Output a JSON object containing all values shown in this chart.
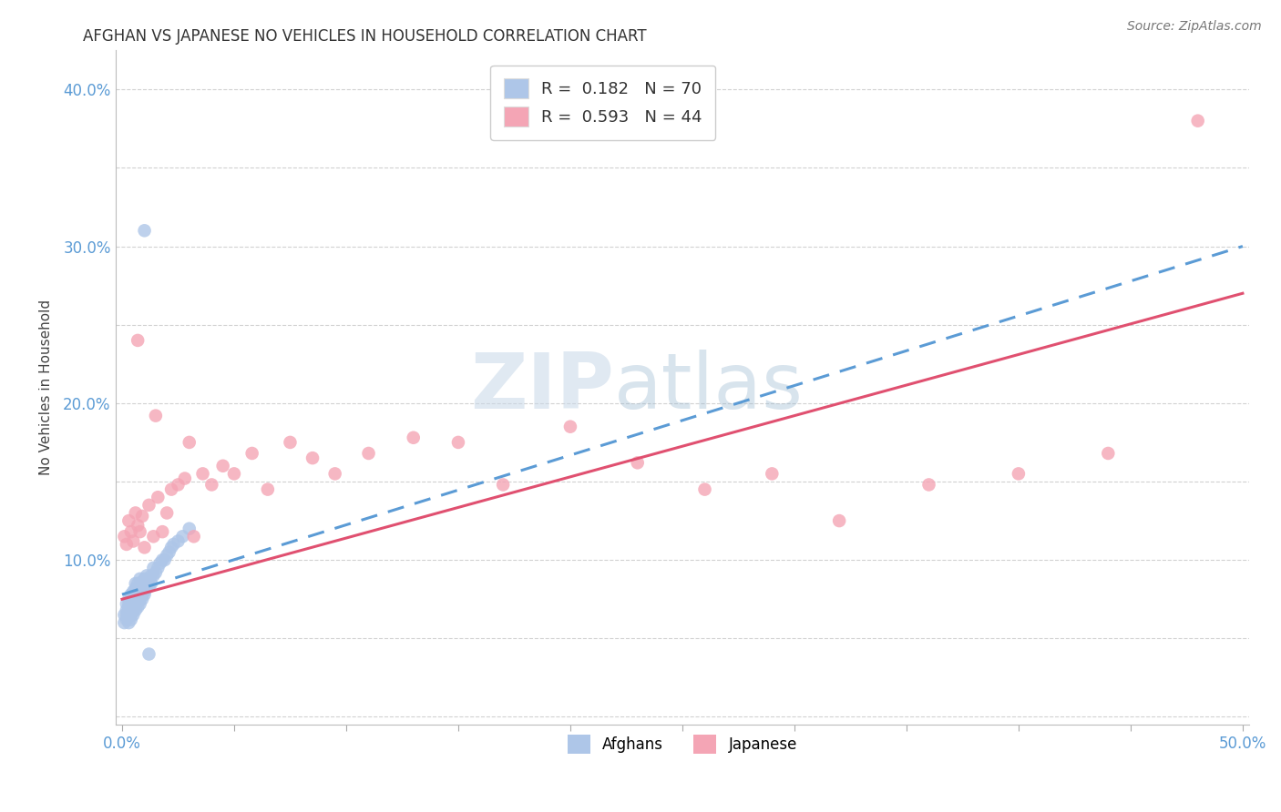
{
  "title": "AFGHAN VS JAPANESE NO VEHICLES IN HOUSEHOLD CORRELATION CHART",
  "source": "Source: ZipAtlas.com",
  "ylabel": "No Vehicles in Household",
  "xlim": [
    -0.003,
    0.503
  ],
  "ylim": [
    -0.005,
    0.425
  ],
  "ytick_positions": [
    0.0,
    0.05,
    0.1,
    0.15,
    0.2,
    0.25,
    0.3,
    0.35,
    0.4
  ],
  "ytick_labels": [
    "",
    "",
    "10.0%",
    "",
    "20.0%",
    "",
    "30.0%",
    "",
    "40.0%"
  ],
  "xtick_positions": [
    0.0,
    0.05,
    0.1,
    0.15,
    0.2,
    0.25,
    0.3,
    0.35,
    0.4,
    0.45,
    0.5
  ],
  "xtick_labels": [
    "0.0%",
    "",
    "",
    "",
    "",
    "",
    "",
    "",
    "",
    "",
    "50.0%"
  ],
  "legend_afghan_R": "0.182",
  "legend_afghan_N": "70",
  "legend_japanese_R": "0.593",
  "legend_japanese_N": "44",
  "afghan_color": "#aec6e8",
  "japanese_color": "#f4a5b5",
  "afghan_line_color": "#5b9bd5",
  "japanese_line_color": "#e05070",
  "grid_color": "#cccccc",
  "background_color": "#ffffff",
  "afghan_x": [
    0.001,
    0.001,
    0.002,
    0.002,
    0.002,
    0.002,
    0.003,
    0.003,
    0.003,
    0.003,
    0.003,
    0.003,
    0.004,
    0.004,
    0.004,
    0.004,
    0.004,
    0.005,
    0.005,
    0.005,
    0.005,
    0.005,
    0.005,
    0.006,
    0.006,
    0.006,
    0.006,
    0.006,
    0.006,
    0.007,
    0.007,
    0.007,
    0.007,
    0.007,
    0.008,
    0.008,
    0.008,
    0.008,
    0.008,
    0.009,
    0.009,
    0.009,
    0.009,
    0.01,
    0.01,
    0.01,
    0.01,
    0.011,
    0.011,
    0.011,
    0.012,
    0.012,
    0.013,
    0.013,
    0.014,
    0.014,
    0.015,
    0.016,
    0.017,
    0.018,
    0.019,
    0.02,
    0.021,
    0.022,
    0.023,
    0.025,
    0.027,
    0.03,
    0.01,
    0.012
  ],
  "afghan_y": [
    0.06,
    0.065,
    0.062,
    0.065,
    0.068,
    0.072,
    0.06,
    0.065,
    0.068,
    0.07,
    0.072,
    0.075,
    0.062,
    0.065,
    0.068,
    0.072,
    0.078,
    0.065,
    0.068,
    0.07,
    0.073,
    0.076,
    0.08,
    0.068,
    0.072,
    0.075,
    0.078,
    0.082,
    0.085,
    0.07,
    0.073,
    0.077,
    0.08,
    0.085,
    0.072,
    0.075,
    0.079,
    0.082,
    0.088,
    0.075,
    0.078,
    0.082,
    0.086,
    0.078,
    0.08,
    0.083,
    0.088,
    0.082,
    0.085,
    0.09,
    0.083,
    0.088,
    0.085,
    0.09,
    0.09,
    0.095,
    0.092,
    0.095,
    0.098,
    0.1,
    0.1,
    0.103,
    0.105,
    0.108,
    0.11,
    0.112,
    0.115,
    0.12,
    0.31,
    0.04
  ],
  "japanese_x": [
    0.001,
    0.002,
    0.003,
    0.004,
    0.005,
    0.006,
    0.007,
    0.008,
    0.009,
    0.01,
    0.012,
    0.014,
    0.016,
    0.018,
    0.02,
    0.022,
    0.025,
    0.028,
    0.032,
    0.036,
    0.04,
    0.045,
    0.05,
    0.058,
    0.065,
    0.075,
    0.085,
    0.095,
    0.11,
    0.13,
    0.15,
    0.17,
    0.2,
    0.23,
    0.26,
    0.29,
    0.32,
    0.36,
    0.4,
    0.44,
    0.007,
    0.015,
    0.03,
    0.48
  ],
  "japanese_y": [
    0.115,
    0.11,
    0.125,
    0.118,
    0.112,
    0.13,
    0.122,
    0.118,
    0.128,
    0.108,
    0.135,
    0.115,
    0.14,
    0.118,
    0.13,
    0.145,
    0.148,
    0.152,
    0.115,
    0.155,
    0.148,
    0.16,
    0.155,
    0.168,
    0.145,
    0.175,
    0.165,
    0.155,
    0.168,
    0.178,
    0.175,
    0.148,
    0.185,
    0.162,
    0.145,
    0.155,
    0.125,
    0.148,
    0.155,
    0.168,
    0.24,
    0.192,
    0.175,
    0.38
  ]
}
